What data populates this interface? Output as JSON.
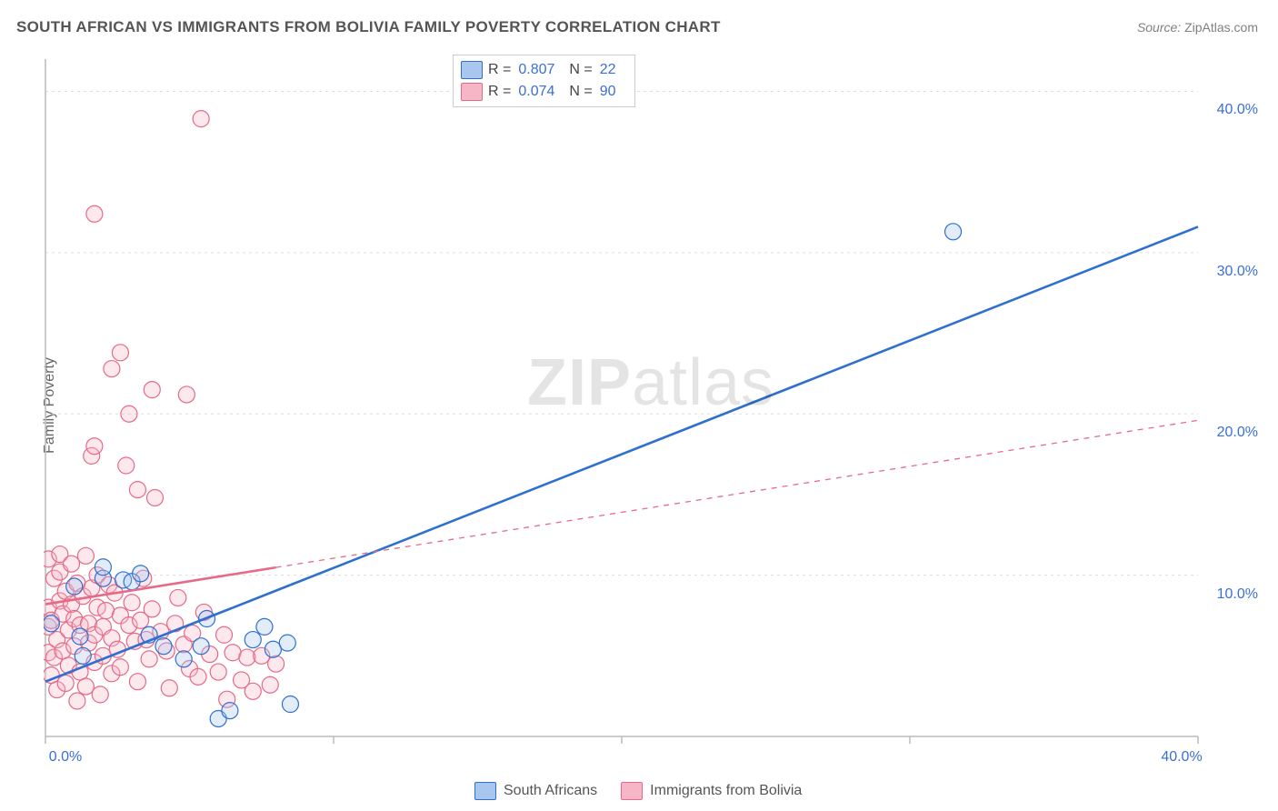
{
  "title": "SOUTH AFRICAN VS IMMIGRANTS FROM BOLIVIA FAMILY POVERTY CORRELATION CHART",
  "source_label": "Source:",
  "source_value": "ZipAtlas.com",
  "ylabel": "Family Poverty",
  "watermark": {
    "bold": "ZIP",
    "rest": "atlas"
  },
  "chart": {
    "type": "scatter-correlation",
    "background_color": "#ffffff",
    "grid_color": "#dddddd",
    "axis_color": "#bbbbbb",
    "tick_color": "#bbbbbb",
    "xlim": [
      0,
      40
    ],
    "ylim": [
      0,
      42
    ],
    "xtick_values": [
      0,
      20,
      40
    ],
    "xtick_labels": [
      "0.0%",
      "",
      "40.0%"
    ],
    "xtick_minor": [
      10,
      30
    ],
    "ytick_values": [
      10,
      20,
      30,
      40
    ],
    "ytick_labels": [
      "10.0%",
      "20.0%",
      "30.0%",
      "40.0%"
    ],
    "marker_radius": 9,
    "marker_stroke_width": 1.2,
    "marker_fill_opacity": 0.32,
    "line_width_solid": 2.6,
    "line_width_dash": 1.3,
    "dash_pattern": "6,6",
    "series": [
      {
        "id": "south_africans",
        "label": "South Africans",
        "color_stroke": "#2f6fd0",
        "color_fill": "#a9c6ef",
        "R": "0.807",
        "N": "22",
        "points": [
          [
            0.2,
            7.0
          ],
          [
            1.0,
            9.3
          ],
          [
            1.2,
            6.2
          ],
          [
            1.3,
            5.0
          ],
          [
            2.0,
            9.8
          ],
          [
            2.0,
            10.5
          ],
          [
            2.7,
            9.7
          ],
          [
            3.0,
            9.6
          ],
          [
            3.3,
            10.1
          ],
          [
            3.6,
            6.3
          ],
          [
            4.1,
            5.6
          ],
          [
            4.8,
            4.8
          ],
          [
            5.4,
            5.6
          ],
          [
            5.6,
            7.3
          ],
          [
            6.0,
            1.1
          ],
          [
            6.4,
            1.6
          ],
          [
            7.2,
            6.0
          ],
          [
            7.6,
            6.8
          ],
          [
            7.9,
            5.4
          ],
          [
            8.4,
            5.8
          ],
          [
            8.5,
            2.0
          ],
          [
            31.5,
            31.3
          ]
        ],
        "trend": {
          "x1": 0,
          "y1": 3.4,
          "x2": 40,
          "y2": 31.6,
          "style": "solid",
          "solid_until_x": 8.5
        }
      },
      {
        "id": "immigrants_bolivia",
        "label": "Immigrants from Bolivia",
        "color_stroke": "#e66a87",
        "color_fill": "#f6b6c6",
        "R": "0.074",
        "N": "90",
        "points": [
          [
            0.1,
            5.2
          ],
          [
            0.1,
            6.8
          ],
          [
            0.1,
            8.0
          ],
          [
            0.1,
            11.0
          ],
          [
            0.2,
            3.8
          ],
          [
            0.2,
            7.2
          ],
          [
            0.3,
            4.9
          ],
          [
            0.3,
            9.8
          ],
          [
            0.4,
            2.9
          ],
          [
            0.4,
            6.0
          ],
          [
            0.5,
            8.4
          ],
          [
            0.5,
            10.2
          ],
          [
            0.5,
            11.3
          ],
          [
            0.6,
            5.3
          ],
          [
            0.6,
            7.6
          ],
          [
            0.7,
            3.3
          ],
          [
            0.7,
            9.0
          ],
          [
            0.8,
            6.6
          ],
          [
            0.8,
            4.4
          ],
          [
            0.9,
            8.2
          ],
          [
            0.9,
            10.7
          ],
          [
            1.0,
            5.6
          ],
          [
            1.0,
            7.3
          ],
          [
            1.1,
            2.2
          ],
          [
            1.1,
            9.5
          ],
          [
            1.2,
            6.9
          ],
          [
            1.2,
            4.0
          ],
          [
            1.3,
            8.7
          ],
          [
            1.4,
            11.2
          ],
          [
            1.4,
            3.1
          ],
          [
            1.5,
            7.0
          ],
          [
            1.5,
            5.8
          ],
          [
            1.6,
            9.2
          ],
          [
            1.7,
            6.3
          ],
          [
            1.7,
            4.6
          ],
          [
            1.8,
            8.0
          ],
          [
            1.8,
            10.0
          ],
          [
            1.9,
            2.6
          ],
          [
            2.0,
            6.8
          ],
          [
            2.0,
            5.0
          ],
          [
            2.1,
            7.8
          ],
          [
            2.2,
            9.4
          ],
          [
            2.3,
            3.9
          ],
          [
            2.3,
            6.1
          ],
          [
            2.4,
            8.9
          ],
          [
            2.5,
            5.4
          ],
          [
            2.6,
            7.5
          ],
          [
            2.6,
            4.3
          ],
          [
            2.8,
            16.8
          ],
          [
            2.9,
            6.9
          ],
          [
            3.0,
            8.3
          ],
          [
            3.1,
            5.9
          ],
          [
            3.2,
            3.4
          ],
          [
            3.3,
            7.2
          ],
          [
            3.4,
            9.8
          ],
          [
            3.5,
            6.0
          ],
          [
            3.6,
            4.8
          ],
          [
            3.7,
            7.9
          ],
          [
            3.8,
            14.8
          ],
          [
            4.0,
            6.5
          ],
          [
            4.2,
            5.3
          ],
          [
            4.3,
            3.0
          ],
          [
            4.5,
            7.0
          ],
          [
            4.6,
            8.6
          ],
          [
            4.8,
            5.7
          ],
          [
            5.0,
            4.2
          ],
          [
            5.1,
            6.4
          ],
          [
            5.3,
            3.7
          ],
          [
            5.5,
            7.7
          ],
          [
            5.7,
            5.1
          ],
          [
            6.0,
            4.0
          ],
          [
            6.2,
            6.3
          ],
          [
            6.3,
            2.3
          ],
          [
            6.5,
            5.2
          ],
          [
            6.8,
            3.5
          ],
          [
            7.0,
            4.9
          ],
          [
            7.2,
            2.8
          ],
          [
            7.5,
            5.0
          ],
          [
            7.8,
            3.2
          ],
          [
            8.0,
            4.5
          ],
          [
            1.6,
            17.4
          ],
          [
            1.7,
            18.0
          ],
          [
            2.3,
            22.8
          ],
          [
            2.9,
            20.0
          ],
          [
            3.2,
            15.3
          ],
          [
            3.7,
            21.5
          ],
          [
            1.7,
            32.4
          ],
          [
            2.6,
            23.8
          ],
          [
            5.4,
            38.3
          ],
          [
            4.9,
            21.2
          ]
        ],
        "trend": {
          "x1": 0,
          "y1": 8.2,
          "x2": 40,
          "y2": 19.6,
          "style": "solid-then-dash",
          "solid_until_x": 8.0
        }
      }
    ]
  },
  "legend_top": {
    "rows": [
      {
        "swatch_stroke": "#2f6fd0",
        "swatch_fill": "#a9c6ef",
        "r_label": "R =",
        "r_value": "0.807",
        "n_label": "N =",
        "n_value": "22"
      },
      {
        "swatch_stroke": "#e66a87",
        "swatch_fill": "#f6b6c6",
        "r_label": "R =",
        "r_value": "0.074",
        "n_label": "N =",
        "n_value": "90"
      }
    ]
  },
  "legend_bottom": [
    {
      "swatch_stroke": "#2f6fd0",
      "swatch_fill": "#a9c6ef",
      "label": "South Africans"
    },
    {
      "swatch_stroke": "#e66a87",
      "swatch_fill": "#f6b6c6",
      "label": "Immigrants from Bolivia"
    }
  ]
}
